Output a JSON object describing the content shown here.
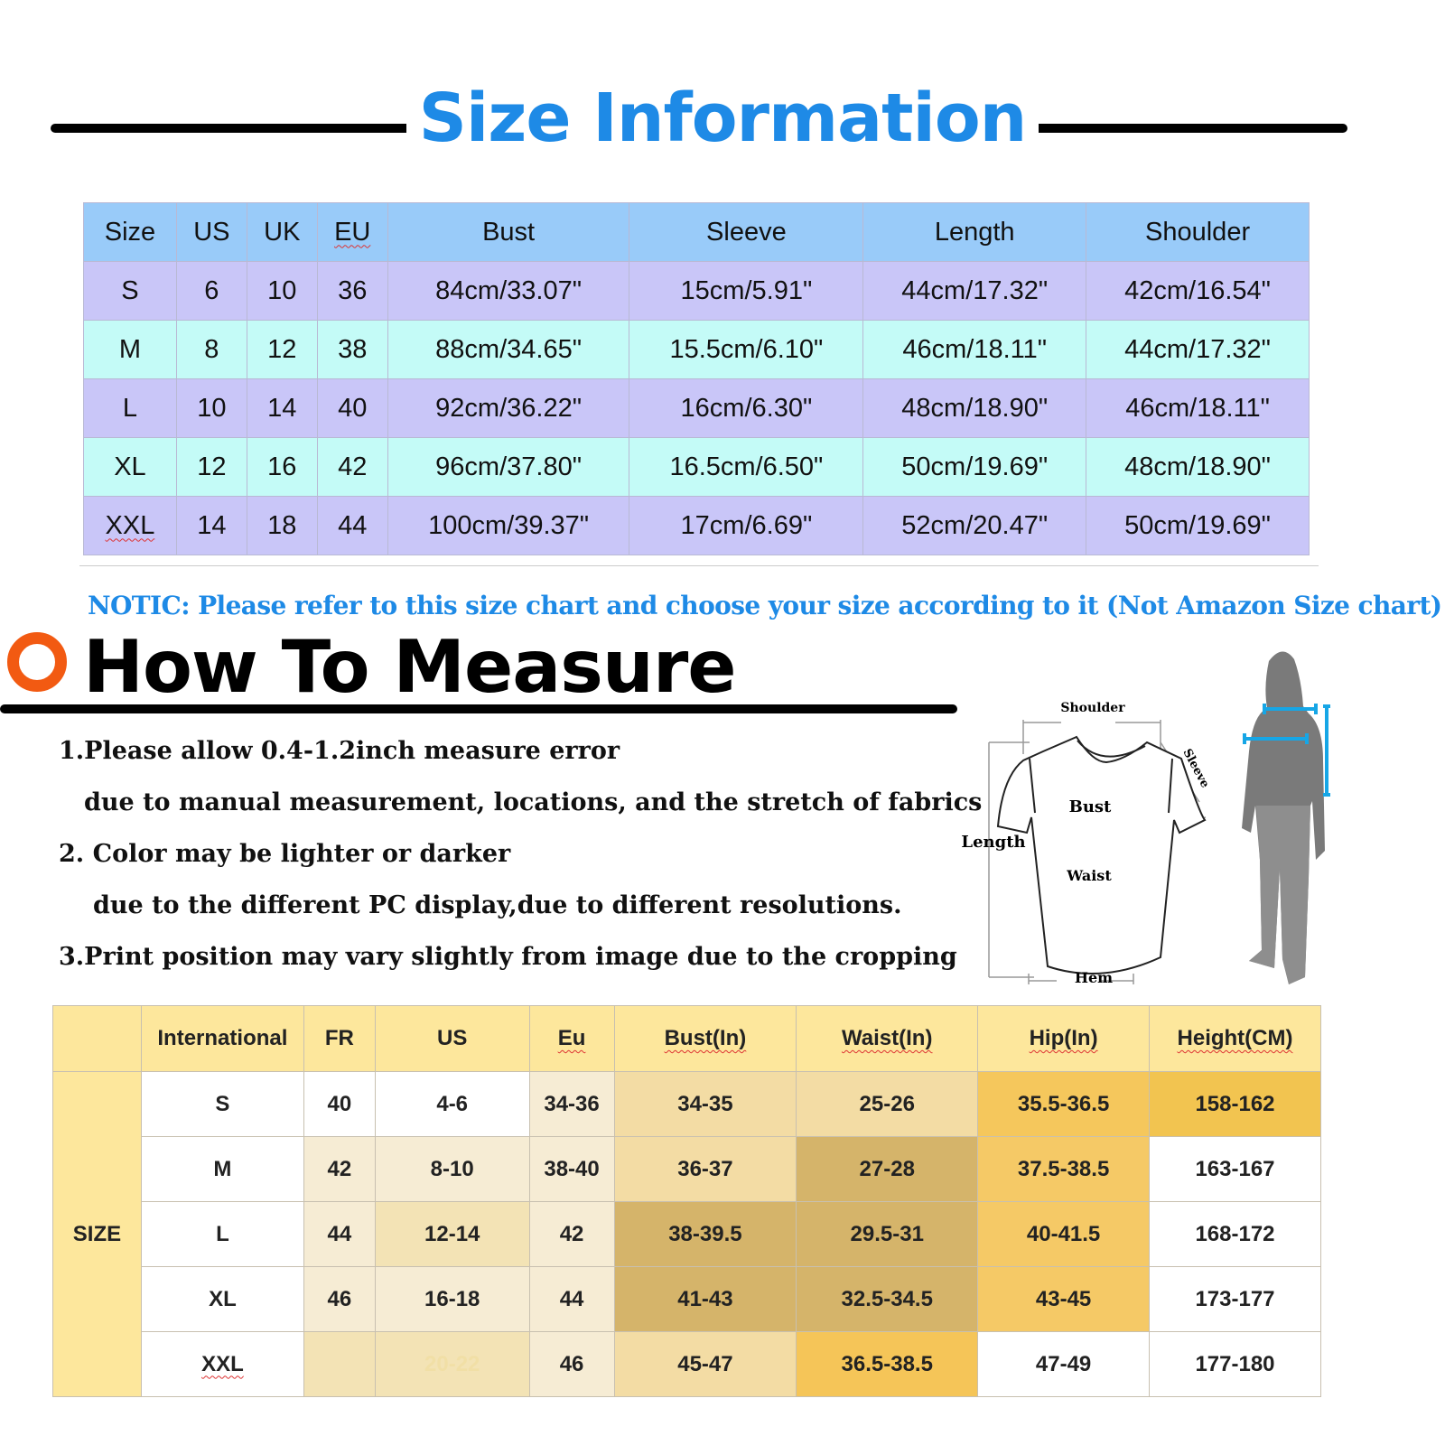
{
  "title": "Size Information",
  "size_table": {
    "headers": [
      "Size",
      "US",
      "UK",
      "EU",
      "Bust",
      "Sleeve",
      "Length",
      "Shoulder"
    ],
    "rows": [
      [
        "S",
        "6",
        "10",
        "36",
        "84cm/33.07\"",
        "15cm/5.91\"",
        "44cm/17.32\"",
        "42cm/16.54\""
      ],
      [
        "M",
        "8",
        "12",
        "38",
        "88cm/34.65\"",
        "15.5cm/6.10\"",
        "46cm/18.11\"",
        "44cm/17.32\""
      ],
      [
        "L",
        "10",
        "14",
        "40",
        "92cm/36.22\"",
        "16cm/6.30\"",
        "48cm/18.90\"",
        "46cm/18.11\""
      ],
      [
        "XL",
        "12",
        "16",
        "42",
        "96cm/37.80\"",
        "16.5cm/6.50\"",
        "50cm/19.69\"",
        "48cm/18.90\""
      ],
      [
        "XXL",
        "14",
        "18",
        "44",
        "100cm/39.37\"",
        "17cm/6.69\"",
        "52cm/20.47\"",
        "50cm/19.69\""
      ]
    ]
  },
  "notice": "NOTIC: Please refer to this size chart and choose your size according to it (Not Amazon Size chart)",
  "how_to_measure": {
    "title": "How To Measure",
    "lines": [
      "1.Please allow 0.4-1.2inch measure error",
      "due to manual measurement, locations, and the stretch of fabrics",
      "2. Color may be lighter or darker",
      "due to the different PC display,due to different resolutions.",
      "3.Print position may vary slightly from image due to the cropping"
    ],
    "figure_labels": {
      "shoulder": "Shoulder",
      "sleeve": "Sleeve",
      "bust": "Bust",
      "length": "Length",
      "waist": "Waist",
      "hem": "Hem"
    }
  },
  "body_table": {
    "row_label": "SIZE",
    "headers": [
      "",
      "International",
      "FR",
      "US",
      "Eu",
      "Bust(In)",
      "Waist(In)",
      "Hip(In)",
      "Height(CM)"
    ],
    "rows": [
      {
        "cells": [
          "S",
          "40",
          "4-6",
          "34-36",
          "34-35",
          "25-26",
          "35.5-36.5",
          "158-162"
        ],
        "colors": [
          "#ffffff",
          "#ffffff",
          "#ffffff",
          "#f6ecd4",
          "#f3dca4",
          "#f3dca4",
          "#f5c75c",
          "#f2c450"
        ]
      },
      {
        "cells": [
          "M",
          "42",
          "8-10",
          "38-40",
          "36-37",
          "27-28",
          "37.5-38.5",
          "163-167"
        ],
        "colors": [
          "#ffffff",
          "#f6ecd4",
          "#f6ecd4",
          "#f6ecd4",
          "#f3dca4",
          "#d5b46a",
          "#f5c966",
          "#ffffff"
        ]
      },
      {
        "cells": [
          "L",
          "44",
          "12-14",
          "42",
          "38-39.5",
          "29.5-31",
          "40-41.5",
          "168-172"
        ],
        "colors": [
          "#ffffff",
          "#f6ecd4",
          "#f3e3b5",
          "#f6ecd4",
          "#d5b46a",
          "#d5b46a",
          "#f5c966",
          "#ffffff"
        ]
      },
      {
        "cells": [
          "XL",
          "46",
          "16-18",
          "44",
          "41-43",
          "32.5-34.5",
          "43-45",
          "173-177"
        ],
        "colors": [
          "#ffffff",
          "#f6ecd4",
          "#f6ecd4",
          "#f6ecd4",
          "#d5b46a",
          "#d5b46a",
          "#f5c966",
          "#ffffff"
        ]
      },
      {
        "cells": [
          "XXL",
          "",
          "20-22",
          "46",
          "45-47",
          "36.5-38.5",
          "47-49",
          "177-180"
        ],
        "colors": [
          "#ffffff",
          "#f3e3b5",
          "#f3e3b5",
          "#f6ecd4",
          "#f3dca4",
          "#f5c558",
          "#ffffff",
          "#ffffff"
        ]
      }
    ]
  },
  "colors": {
    "accent_blue": "#1e8ae6",
    "ring_orange": "#f25a12",
    "header_blue": "#99cbf9",
    "row_lavender": "#c9c6f8",
    "row_cyan": "#c4fbf7",
    "header_yellow": "#fde79c"
  }
}
